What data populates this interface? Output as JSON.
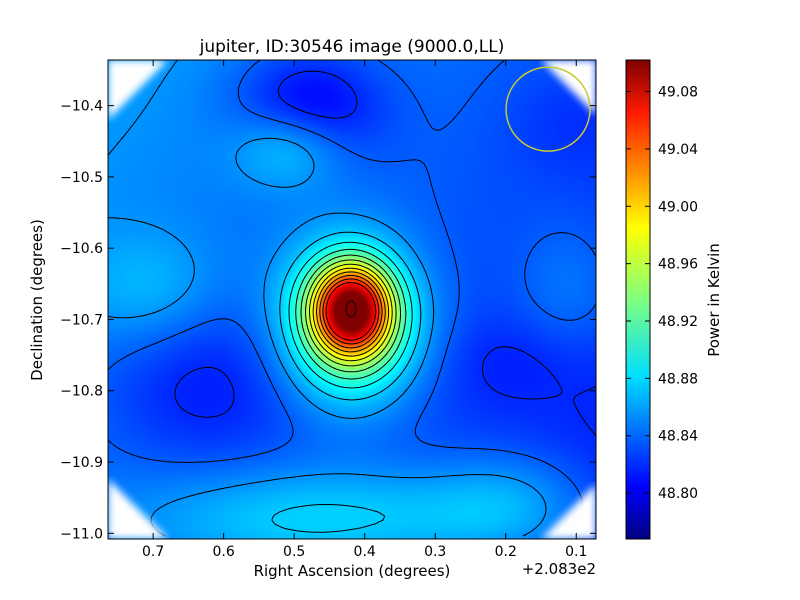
{
  "chart_data": {
    "type": "heatmap",
    "title": "jupiter, ID:30546 image (9000.0,LL)",
    "xlabel": "Right Ascension (degrees)",
    "ylabel": "Declination (degrees)",
    "x_offset_label": "+2.083e2",
    "xlim": [
      0.764,
      0.072
    ],
    "ylim": [
      -11.008,
      -10.336
    ],
    "x_ticks": [
      0.7,
      0.6,
      0.5,
      0.4,
      0.3,
      0.2,
      0.1
    ],
    "x_tick_labels": [
      "0.7",
      "0.6",
      "0.5",
      "0.4",
      "0.3",
      "0.2",
      "0.1"
    ],
    "y_ticks": [
      -10.4,
      -10.5,
      -10.6,
      -10.7,
      -10.8,
      -10.9,
      -11.0
    ],
    "y_tick_labels": [
      "−10.4",
      "−10.5",
      "−10.6",
      "−10.7",
      "−10.8",
      "−10.9",
      "−11.0"
    ],
    "colormap": "jet",
    "colorbar": {
      "label": "Power in Kelvin",
      "range": [
        48.768,
        49.102
      ],
      "ticks": [
        48.8,
        48.84,
        48.88,
        48.92,
        48.96,
        49.0,
        49.04,
        49.08
      ],
      "tick_labels": [
        "48.80",
        "48.84",
        "48.88",
        "48.92",
        "48.96",
        "49.00",
        "49.04",
        "49.08"
      ]
    },
    "peak": {
      "ra_offset": 0.42,
      "dec": -10.685,
      "value": 49.09
    },
    "beam_circle": {
      "ra_offset": 0.14,
      "dec": -10.405,
      "color": "#c8c832"
    },
    "contours": true,
    "grid": false
  }
}
